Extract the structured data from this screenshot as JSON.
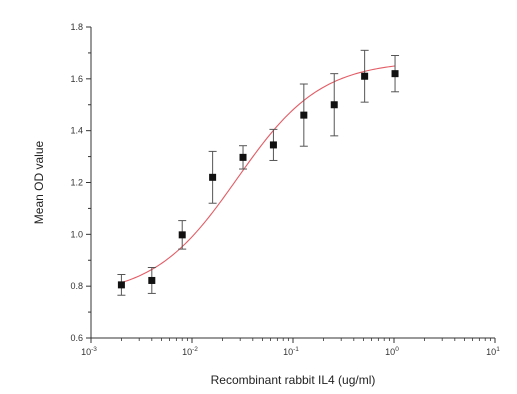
{
  "chart_data": {
    "type": "scatter",
    "xlabel": "Recombinant rabbit IL4 (ug/ml)",
    "ylabel": "Mean OD value",
    "xscale": "log",
    "xlim": [
      0.001,
      10
    ],
    "ylim": [
      0.6,
      1.8
    ],
    "grid": false,
    "legend": "none",
    "x_ticks": [
      {
        "value": 0.001,
        "base": "10",
        "exp": "-3"
      },
      {
        "value": 0.01,
        "base": "10",
        "exp": "-2"
      },
      {
        "value": 0.1,
        "base": "10",
        "exp": "-1"
      },
      {
        "value": 1,
        "base": "10",
        "exp": "0"
      },
      {
        "value": 10,
        "base": "10",
        "exp": "1"
      }
    ],
    "y_ticks": [
      {
        "value": 0.6,
        "label": "0.6"
      },
      {
        "value": 0.8,
        "label": "0.8"
      },
      {
        "value": 1.0,
        "label": "1.0"
      },
      {
        "value": 1.2,
        "label": "1.2"
      },
      {
        "value": 1.4,
        "label": "1.4"
      },
      {
        "value": 1.6,
        "label": "1.6"
      },
      {
        "value": 1.8,
        "label": "1.8"
      }
    ],
    "series": [
      {
        "x": [
          0.002,
          0.004,
          0.008,
          0.016,
          0.032,
          0.064,
          0.128,
          0.256,
          0.512,
          1.024
        ],
        "y": [
          0.805,
          0.822,
          0.998,
          1.22,
          1.297,
          1.345,
          1.46,
          1.5,
          1.61,
          1.62
        ],
        "err": [
          0.04,
          0.05,
          0.055,
          0.1,
          0.045,
          0.06,
          0.12,
          0.12,
          0.1,
          0.07
        ],
        "marker_color": "#111111"
      }
    ],
    "fit_curve": {
      "model": "four-parameter logistic",
      "bottom": 0.76,
      "top": 1.67,
      "ec50": 0.028,
      "hill": 1.05,
      "color": "#e35d66"
    },
    "axis_color": "#333333"
  }
}
